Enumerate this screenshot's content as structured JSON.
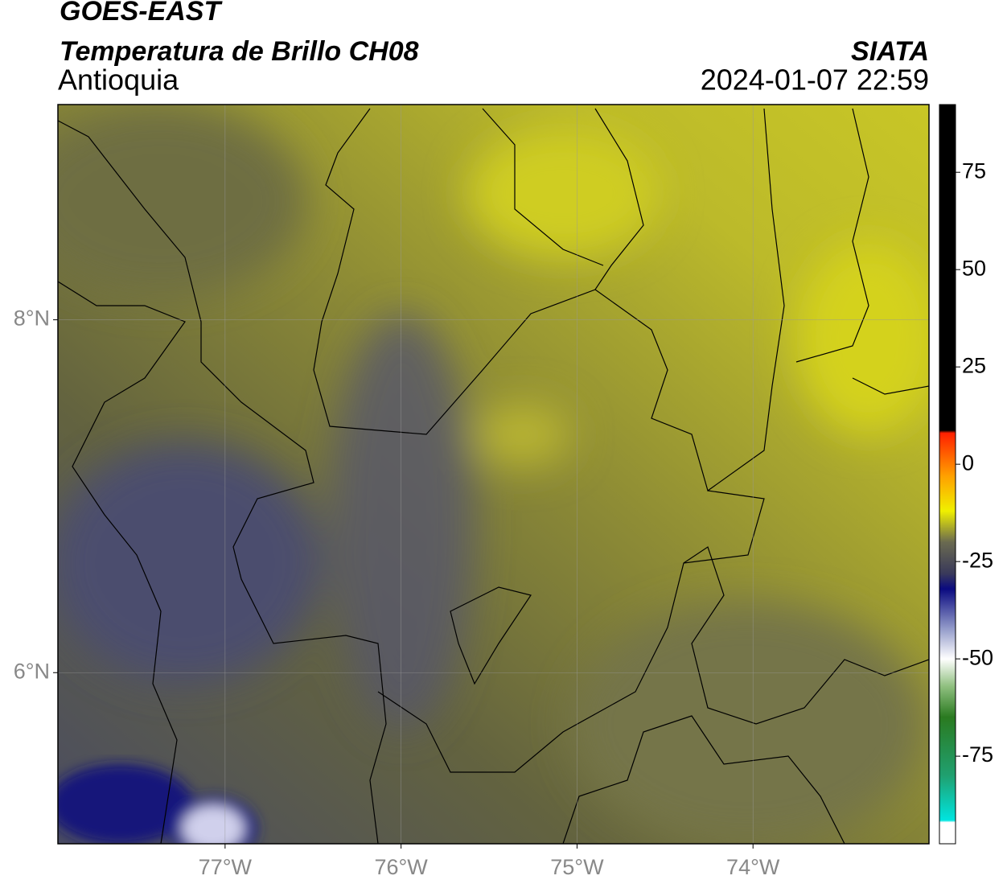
{
  "header": {
    "title": "GOES-EAST",
    "subtitle": "Temperatura de Brillo CH08",
    "region": "Antioquia",
    "source": "SIATA",
    "datetime": "2024-01-07 22:59"
  },
  "map": {
    "xlim": [
      -77.95,
      -73.0
    ],
    "ylim": [
      5.03,
      9.22
    ],
    "xticks": [
      {
        "value": -77,
        "label": "77°W"
      },
      {
        "value": -76,
        "label": "76°W"
      },
      {
        "value": -75,
        "label": "75°W"
      },
      {
        "value": -74,
        "label": "74°W"
      }
    ],
    "yticks": [
      {
        "value": 8,
        "label": "8°N"
      },
      {
        "value": 6,
        "label": "6°N"
      }
    ],
    "grid": true
  },
  "colorbar": {
    "lim": [
      -97.5,
      92.4
    ],
    "ticks": [
      75,
      50,
      25,
      0,
      -25,
      -50,
      -75
    ],
    "stops": [
      {
        "value": -97.5,
        "color": "#ffffff"
      },
      {
        "value": -92,
        "color": "#ffffff"
      },
      {
        "value": -91.5,
        "color": "#00e5e0"
      },
      {
        "value": -80,
        "color": "#20a070"
      },
      {
        "value": -65,
        "color": "#2a7a20"
      },
      {
        "value": -57,
        "color": "#90c080"
      },
      {
        "value": -50,
        "color": "#ffffff"
      },
      {
        "value": -42,
        "color": "#9098c8"
      },
      {
        "value": -32,
        "color": "#0a0a80"
      },
      {
        "value": -28,
        "color": "#3a3a5a"
      },
      {
        "value": -20,
        "color": "#6a6a50"
      },
      {
        "value": -12,
        "color": "#f0f000"
      },
      {
        "value": -3,
        "color": "#ffa000"
      },
      {
        "value": 8,
        "color": "#ff2000"
      },
      {
        "value": 8.7,
        "color": "#000000"
      },
      {
        "value": 92.4,
        "color": "#000000"
      }
    ]
  }
}
